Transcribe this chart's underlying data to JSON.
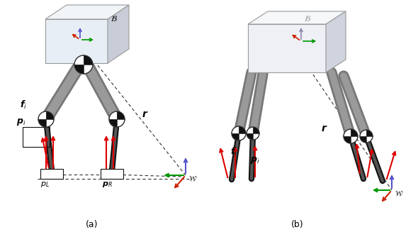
{
  "fig_width": 5.9,
  "fig_height": 3.34,
  "dpi": 100,
  "bg_color": "#ffffff",
  "colors": {
    "gray_leg_dark": "#666666",
    "gray_leg_light": "#bbbbbb",
    "black_leg": "#111111",
    "red_arrow": "#dd0000",
    "blue_axis": "#0055cc",
    "green_axis": "#009900",
    "red_axis": "#cc2200",
    "joint_dark": "#111111",
    "joint_light": "#ffffff",
    "dashed": "#333333",
    "box_face": "#e8eef5",
    "box_top": "#f2f5f8",
    "box_side": "#c8cdd8",
    "box_stroke": "#999999",
    "foot_label": "#111111"
  }
}
